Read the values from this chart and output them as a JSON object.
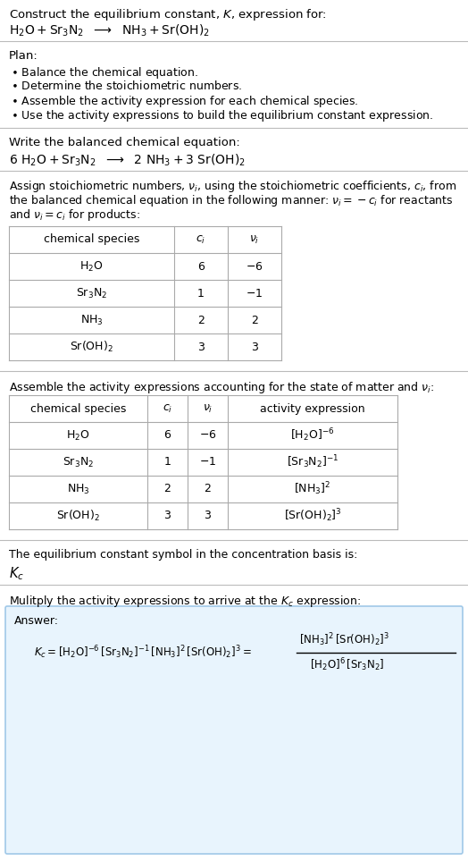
{
  "bg_color": "#ffffff",
  "answer_box_bg": "#e8f4fd",
  "answer_box_border": "#a0c8e8",
  "text_color": "#000000",
  "separator_color": "#bbbbbb",
  "table_line_color": "#aaaaaa",
  "font_size": 9.5,
  "small_font": 9.0,
  "table_font": 9.0,
  "title1": "Construct the equilibrium constant, $K$, expression for:",
  "title2_parts": [
    "H_2O + Sr_3N_2",
    "NH_3 + Sr(OH)_2"
  ],
  "plan_header": "Plan:",
  "plan_items": [
    "Balance the chemical equation.",
    "Determine the stoichiometric numbers.",
    "Assemble the activity expression for each chemical species.",
    "Use the activity expressions to build the equilibrium constant expression."
  ],
  "bal_header": "Write the balanced chemical equation:",
  "bal_parts": [
    "6 H_2O + Sr_3N_2",
    "2 NH_3 + 3 Sr(OH)_2"
  ],
  "t1_intro": [
    "Assign stoichiometric numbers, $\\nu_i$, using the stoichiometric coefficients, $c_i$, from",
    "the balanced chemical equation in the following manner: $\\nu_i = -c_i$ for reactants",
    "and $\\nu_i = c_i$ for products:"
  ],
  "t1_headers": [
    "chemical species",
    "c_i",
    "v_i"
  ],
  "t1_rows": [
    [
      "H_2O",
      "6",
      "-6"
    ],
    [
      "Sr_3N_2",
      "1",
      "-1"
    ],
    [
      "NH_3",
      "2",
      "2"
    ],
    [
      "Sr(OH)_2",
      "3",
      "3"
    ]
  ],
  "t2_intro": "Assemble the activity expressions accounting for the state of matter and $\\nu_i$:",
  "t2_headers": [
    "chemical species",
    "c_i",
    "v_i",
    "activity expression"
  ],
  "t2_rows": [
    [
      "H_2O",
      "6",
      "-6",
      "[H_2O]^{-6}"
    ],
    [
      "Sr_3N_2",
      "1",
      "-1",
      "[Sr_3N_2]^{-1}"
    ],
    [
      "NH_3",
      "2",
      "2",
      "[NH_3]^{2}"
    ],
    [
      "Sr(OH)_2",
      "3",
      "3",
      "[Sr(OH)_2]^{3}"
    ]
  ],
  "kc_intro": "The equilibrium constant symbol in the concentration basis is:",
  "kc_sym": "$K_c$",
  "mult_intro": "Mulitply the activity expressions to arrive at the $K_c$ expression:",
  "answer_label": "Answer:"
}
